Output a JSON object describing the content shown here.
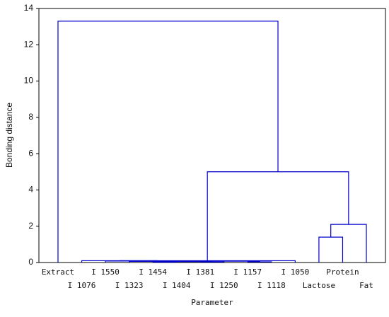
{
  "chart_data": {
    "type": "dendrogram",
    "x_label": "Parameter",
    "y_label": "Bonding distance",
    "categories": [
      "Extract",
      "I 1076",
      "I 1550",
      "I 1323",
      "I 1454",
      "I 1404",
      "I 1381",
      "I 1250",
      "I 1157",
      "I 1118",
      "I 1050",
      "Lactose",
      "Protein",
      "Fat"
    ],
    "merges": [
      [
        4,
        5,
        0.02
      ],
      [
        6,
        7,
        0.03
      ],
      [
        14,
        15,
        0.05
      ],
      [
        3,
        16,
        0.06
      ],
      [
        8,
        9,
        0.04
      ],
      [
        17,
        18,
        0.07
      ],
      [
        2,
        19,
        0.08
      ],
      [
        1,
        20,
        0.1
      ],
      [
        21,
        10,
        0.1
      ],
      [
        11,
        12,
        1.4
      ],
      [
        23,
        13,
        2.1
      ],
      [
        22,
        24,
        5.0
      ],
      [
        0,
        25,
        13.3
      ]
    ],
    "color": "#0000cc",
    "ylim": [
      0,
      14
    ],
    "yticks": [
      0,
      2,
      4,
      6,
      8,
      10,
      12,
      14
    ]
  }
}
